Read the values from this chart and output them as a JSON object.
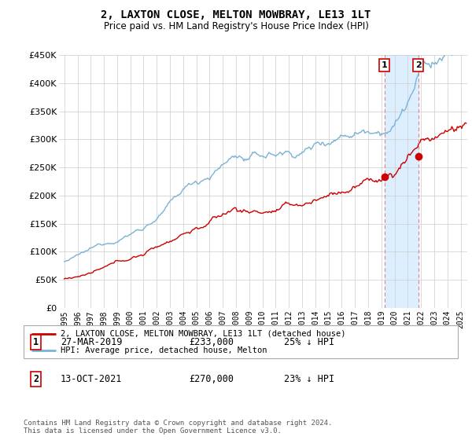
{
  "title": "2, LAXTON CLOSE, MELTON MOWBRAY, LE13 1LT",
  "subtitle": "Price paid vs. HM Land Registry's House Price Index (HPI)",
  "legend_label_red": "2, LAXTON CLOSE, MELTON MOWBRAY, LE13 1LT (detached house)",
  "legend_label_blue": "HPI: Average price, detached house, Melton",
  "sale1_date": "27-MAR-2019",
  "sale1_price": "£233,000",
  "sale1_note": "25% ↓ HPI",
  "sale2_date": "13-OCT-2021",
  "sale2_price": "£270,000",
  "sale2_note": "23% ↓ HPI",
  "footer": "Contains HM Land Registry data © Crown copyright and database right 2024.\nThis data is licensed under the Open Government Licence v3.0.",
  "ylim": [
    0,
    450000
  ],
  "yticks": [
    0,
    50000,
    100000,
    150000,
    200000,
    250000,
    300000,
    350000,
    400000,
    450000
  ],
  "sale1_year": 2019.23,
  "sale1_value": 233000,
  "sale2_year": 2021.78,
  "sale2_value": 270000,
  "hpi_color": "#7ab3d4",
  "price_color": "#cc0000",
  "vline_color": "#e88080",
  "shade_color": "#ddeeff",
  "background_color": "#ffffff",
  "grid_color": "#cccccc"
}
